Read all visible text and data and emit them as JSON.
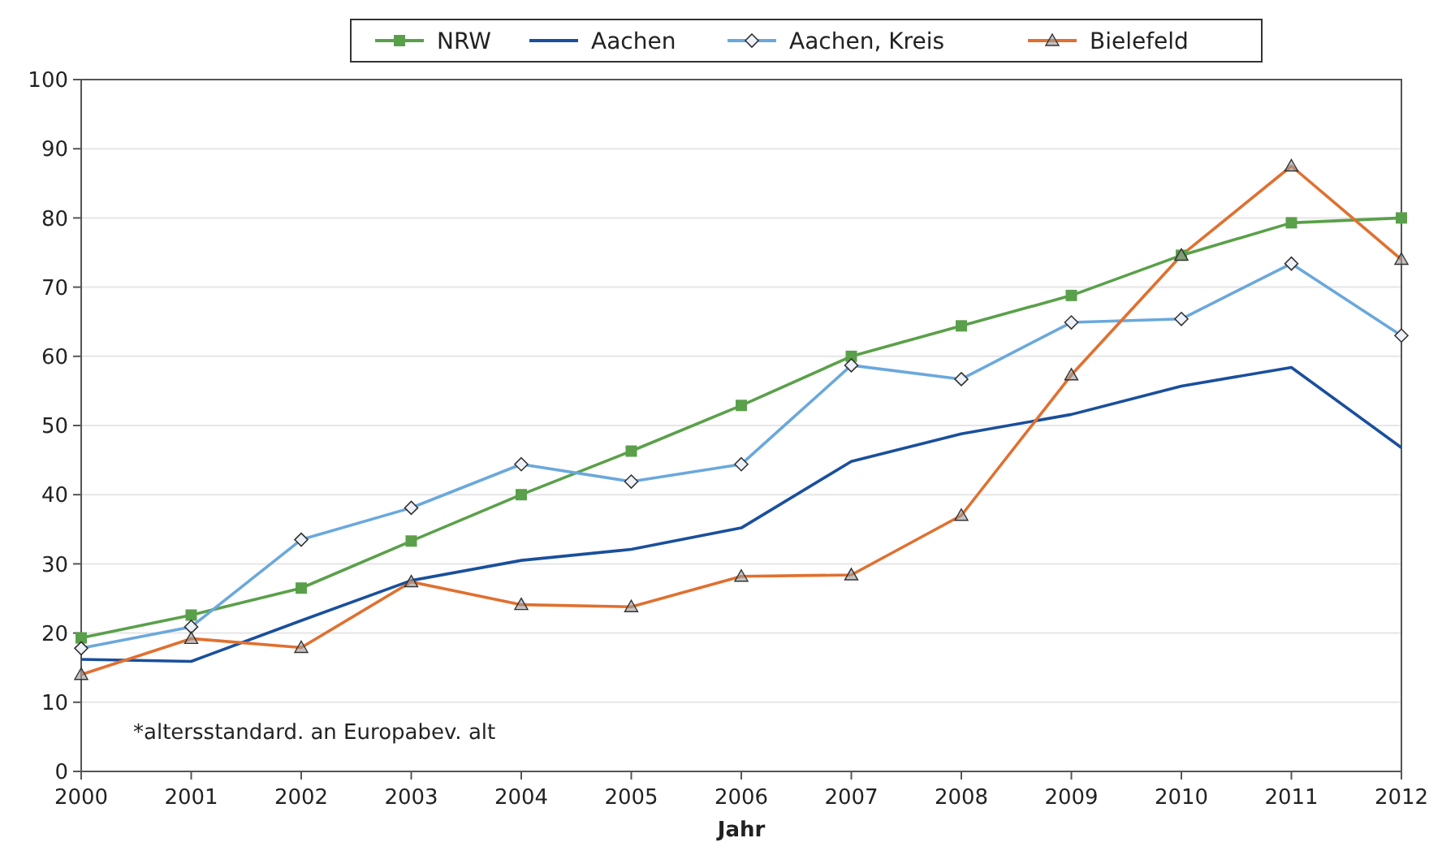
{
  "chart_data": {
    "type": "line",
    "xlabel": "Jahr",
    "x": [
      2000,
      2001,
      2002,
      2003,
      2004,
      2005,
      2006,
      2007,
      2008,
      2009,
      2010,
      2011,
      2012
    ],
    "xlim": [
      2000,
      2012
    ],
    "xticks": [
      2000,
      2001,
      2002,
      2003,
      2004,
      2005,
      2006,
      2007,
      2008,
      2009,
      2010,
      2011,
      2012
    ],
    "ylim": [
      0,
      100
    ],
    "yticks": [
      0,
      10,
      20,
      30,
      40,
      50,
      60,
      70,
      80,
      90,
      100
    ],
    "grid": "y",
    "legend": "top",
    "series": [
      {
        "name": "NRW",
        "color": "#5aa04a",
        "marker": "square",
        "values": [
          19.3,
          22.6,
          26.5,
          33.3,
          40,
          46.3,
          52.9,
          60,
          64.4,
          68.8,
          74.6,
          79.3,
          80
        ]
      },
      {
        "name": "Aachen",
        "color": "#1a4f9c",
        "marker": "none",
        "values": [
          16.2,
          15.9,
          21.8,
          27.6,
          30.5,
          32.1,
          35.2,
          44.8,
          48.8,
          51.6,
          55.7,
          58.4,
          46.8
        ]
      },
      {
        "name": "Aachen, Kreis",
        "color": "#6aa8dc",
        "marker": "diamond",
        "values": [
          17.8,
          20.9,
          33.5,
          38.1,
          44.4,
          41.9,
          44.4,
          58.7,
          56.7,
          64.9,
          65.4,
          73.4,
          63
        ]
      },
      {
        "name": "Bielefeld",
        "color": "#e07030",
        "marker": "triangle",
        "values": [
          14,
          19.2,
          17.9,
          27.4,
          24.1,
          23.8,
          28.2,
          28.4,
          37,
          57.3,
          74.6,
          87.5,
          74
        ]
      }
    ],
    "annotations": [
      "*altersstandard. an Europabev. alt"
    ]
  }
}
